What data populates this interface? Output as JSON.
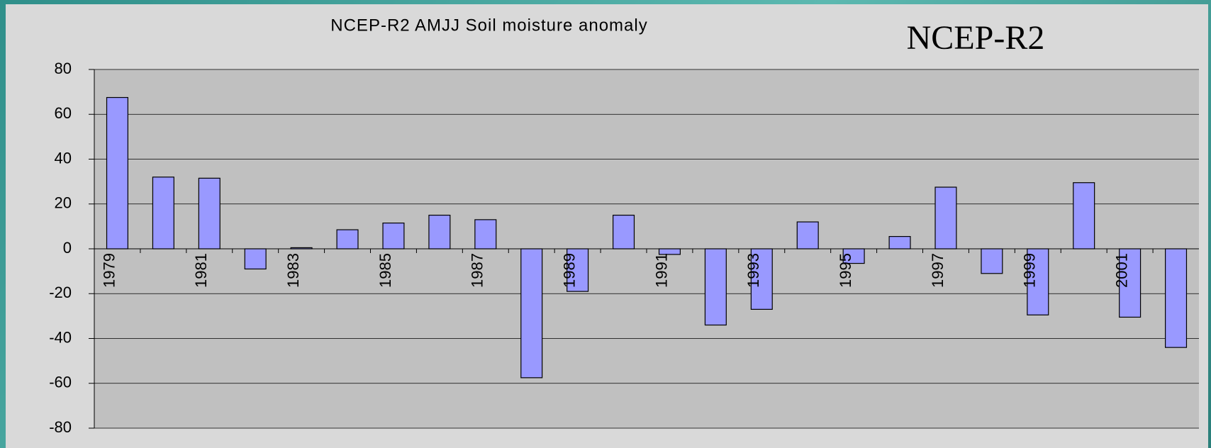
{
  "chart_data": {
    "type": "bar",
    "title": "NCEP-R2 AMJJ Soil moisture anomaly",
    "annotation": "NCEP-R2",
    "categories": [
      "1979",
      null,
      "1981",
      null,
      "1983",
      null,
      "1985",
      null,
      "1987",
      null,
      "1989",
      null,
      "1991",
      null,
      "1993",
      null,
      "1995",
      null,
      "1997",
      null,
      "1999",
      null,
      "2001",
      null
    ],
    "values": [
      67.5,
      32,
      31.5,
      -9,
      0.5,
      8.5,
      11.5,
      15,
      13,
      -57.5,
      -19,
      15,
      -2.5,
      -34,
      -27,
      12,
      -6.5,
      5.5,
      27.5,
      -11,
      -29.5,
      29.5,
      -30.5,
      -44
    ],
    "color": "#9999ff",
    "ylim": [
      -80,
      80
    ],
    "yticks": [
      -80,
      -60,
      -40,
      -20,
      0,
      20,
      40,
      60,
      80
    ],
    "grid": true
  }
}
